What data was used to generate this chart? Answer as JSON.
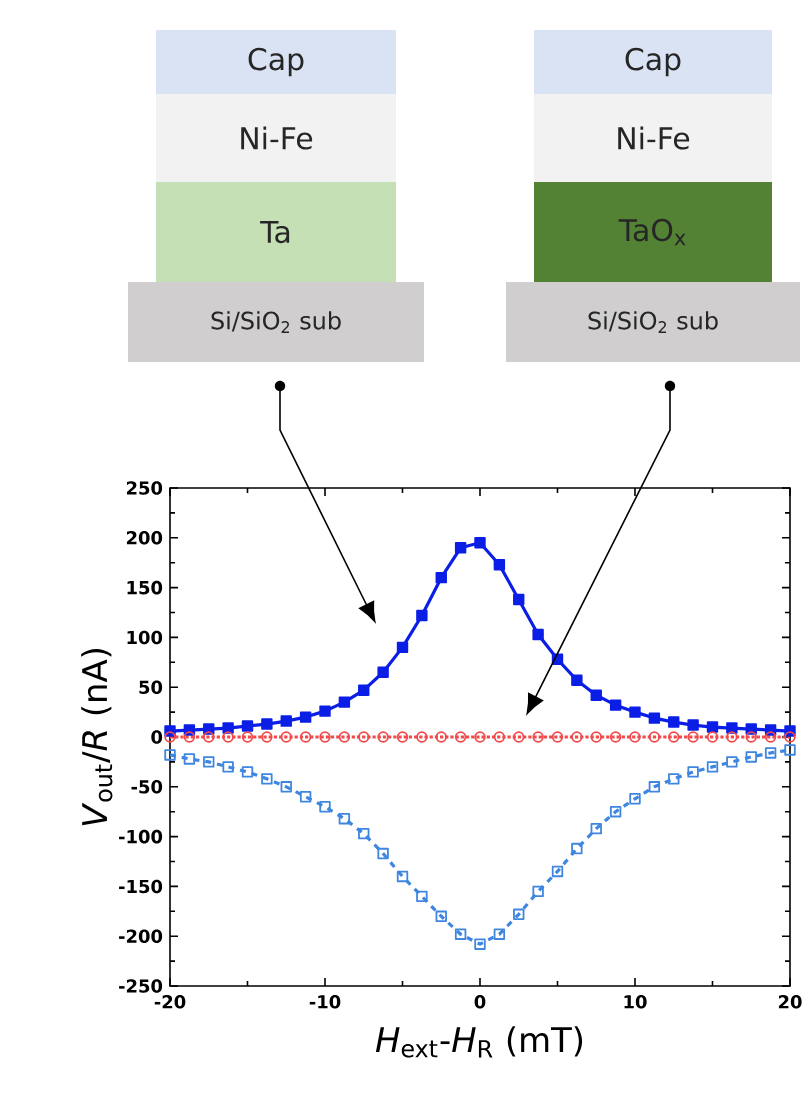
{
  "chart_data": {
    "type": "line",
    "xlabel": "*H*$_{ext}$-*H*$_{R}$ (mT)",
    "ylabel": "*V*$_{out}$/*R* (nA)",
    "annotations": [
      "Cap",
      "Ni-Fe",
      "Ta",
      "Si/SiO$_{2}$ sub",
      "Cap",
      "Ni-Fe",
      "TaO$_{x}$",
      "Si/SiO$_{2}$ sub"
    ],
    "x": [
      -20,
      -18.75,
      -17.5,
      -16.25,
      -15,
      -13.75,
      -12.5,
      -11.25,
      -10,
      -8.75,
      -7.5,
      -6.25,
      -5,
      -3.75,
      -2.5,
      -1.25,
      0,
      1.25,
      2.5,
      3.75,
      5,
      6.25,
      7.5,
      8.75,
      10,
      11.25,
      12.5,
      13.75,
      15,
      16.25,
      17.5,
      18.75,
      20
    ],
    "series": [
      {
        "color": "#0a1ee6",
        "marker": "square",
        "line_style": "solid",
        "values": [
          6,
          7,
          8,
          9,
          11,
          13,
          16,
          20,
          26,
          35,
          47,
          65,
          90,
          122,
          160,
          190,
          195,
          173,
          138,
          103,
          78,
          57,
          42,
          32,
          25,
          19,
          15,
          12,
          10,
          9,
          8,
          7,
          6
        ]
      },
      {
        "color": "#f04a4a",
        "marker": "circle",
        "line_style": "dotted",
        "values": [
          0,
          0,
          0,
          0,
          0,
          0,
          0,
          0,
          0,
          0,
          0,
          0,
          0,
          0,
          0,
          0,
          0,
          0,
          0,
          0,
          0,
          0,
          0,
          0,
          0,
          0,
          0,
          0,
          0,
          0,
          0,
          0,
          0
        ]
      },
      {
        "color": "#3f86e0",
        "marker": "square",
        "line_style": "dashed",
        "values": [
          -18,
          -22,
          -25,
          -30,
          -35,
          -42,
          -50,
          -60,
          -70,
          -82,
          -97,
          -117,
          -140,
          -160,
          -180,
          -198,
          -208,
          -198,
          -178,
          -155,
          -135,
          -112,
          -92,
          -75,
          -62,
          -50,
          -42,
          -35,
          -30,
          -25,
          -20,
          -16,
          -13
        ]
      }
    ],
    "xlim": [
      -20,
      20
    ],
    "ylim": [
      -250,
      250
    ],
    "xticks": [
      -20,
      -10,
      0,
      10,
      20
    ],
    "yticks": [
      -250,
      -200,
      -150,
      -100,
      -50,
      0,
      50,
      100,
      150,
      200,
      250
    ],
    "grid": false
  }
}
